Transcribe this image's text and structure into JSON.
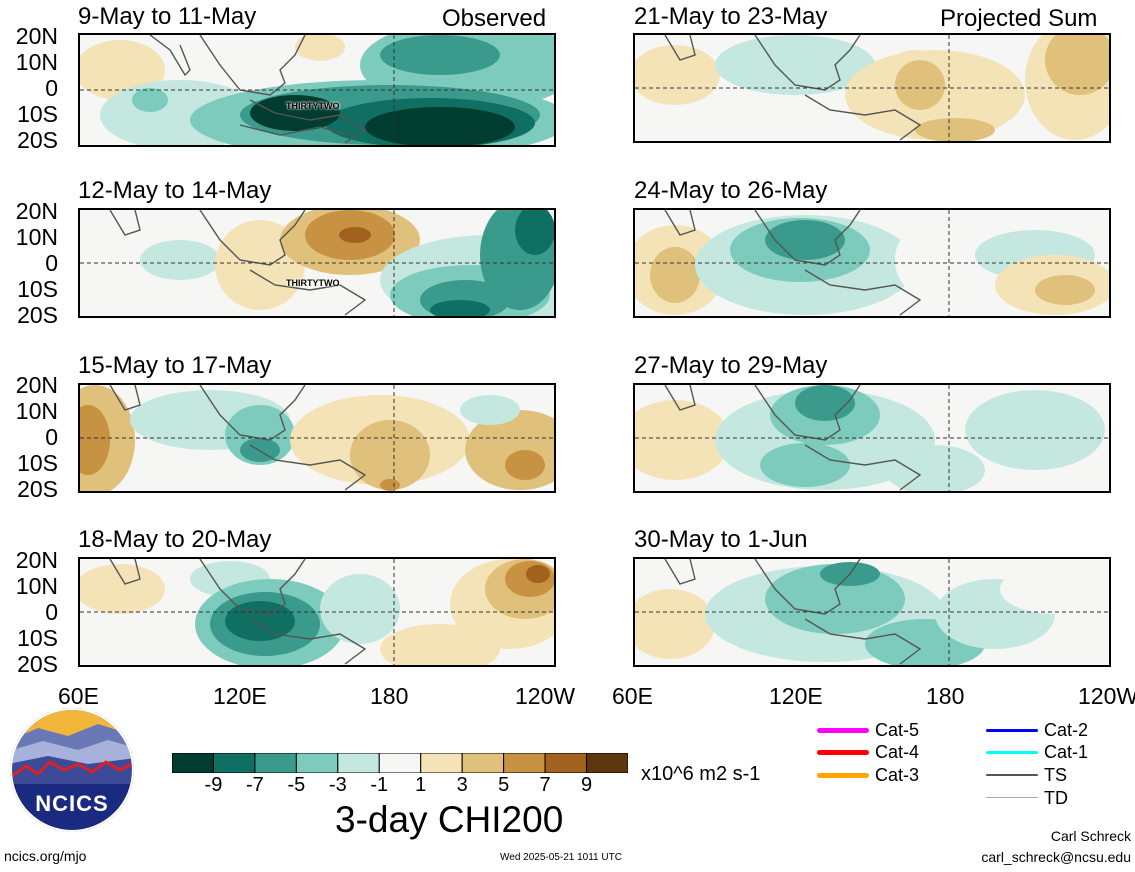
{
  "left_header": {
    "panel_type": "Observed"
  },
  "right_header": {
    "panel_type": "Projected Sum"
  },
  "panels_left": [
    {
      "date": "9-May to 11-May",
      "storm_label": "THIRTYTWO"
    },
    {
      "date": "12-May to 14-May",
      "storm_label": "THIRTYTWO"
    },
    {
      "date": "15-May to 17-May"
    },
    {
      "date": "18-May to 20-May"
    }
  ],
  "panels_right": [
    {
      "date": "21-May to 23-May"
    },
    {
      "date": "24-May to 26-May"
    },
    {
      "date": "27-May to 29-May"
    },
    {
      "date": "30-May to 1-Jun"
    }
  ],
  "lat_labels": [
    "20N",
    "10N",
    "0",
    "10S",
    "20S"
  ],
  "lon_labels": [
    "60E",
    "120E",
    "180",
    "120W"
  ],
  "colorbar": {
    "title": "3-day CHI200",
    "units": "x10^6 m2 s-1",
    "ticks": [
      "-9",
      "-7",
      "-5",
      "-3",
      "-1",
      "1",
      "3",
      "5",
      "7",
      "9"
    ],
    "colors": [
      "#003d30",
      "#0f6f62",
      "#3a9a8c",
      "#7ccbbc",
      "#c4e8e0",
      "#f6f6f4",
      "#f5e3b8",
      "#e0c17c",
      "#c89243",
      "#a0621c",
      "#5e3610"
    ]
  },
  "track_legend": [
    {
      "label": "Cat-5",
      "color": "#ff00ff"
    },
    {
      "label": "Cat-4",
      "color": "#ff0000"
    },
    {
      "label": "Cat-3",
      "color": "#ffa500"
    },
    {
      "label": "Cat-2",
      "color": "#0000ff"
    },
    {
      "label": "Cat-1",
      "color": "#00ffff"
    },
    {
      "label": "TS",
      "color": "#555555"
    },
    {
      "label": "TD",
      "color": "#aaaaaa"
    }
  ],
  "logo": {
    "text": "NCICS"
  },
  "footer": {
    "url": "ncics.org/mjo",
    "timestamp": "Wed 2025-05-21 1011 UTC",
    "author": "Carl Schreck",
    "email": "carl_schreck@ncsu.edu"
  }
}
